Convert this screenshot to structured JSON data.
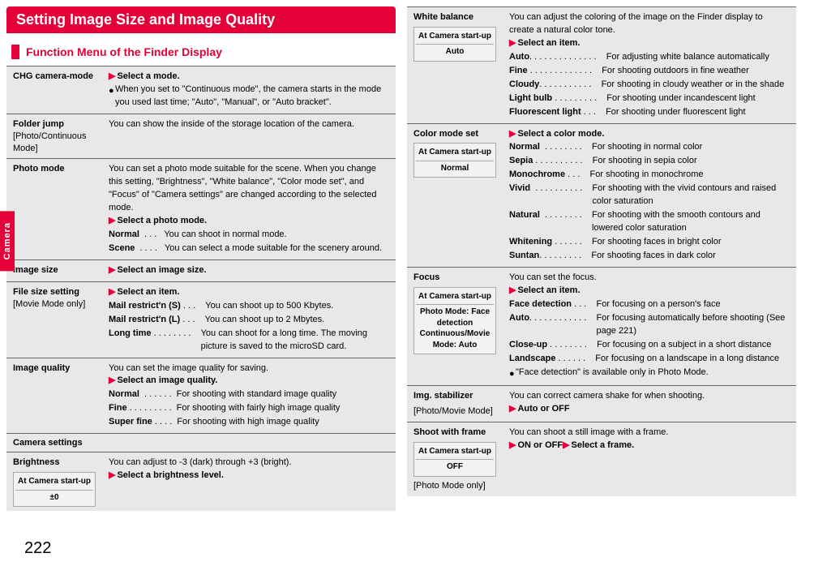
{
  "sideTab": "Camera",
  "pageNumber": "222",
  "titleBand": "Setting Image Size and Image Quality",
  "subtitle": "Function Menu of the Finder Display",
  "marker": "▶",
  "bullet": "●",
  "leftCol": [
    {
      "head": "CHG camera-mode",
      "headSub": "",
      "body": {
        "instruction": "Select a mode.",
        "note": "When you set to \"Continuous mode\", the camera starts in the mode you used last time; \"Auto\", \"Manual\", or \"Auto bracket\"."
      }
    },
    {
      "head": "Folder jump",
      "headSub": "[Photo/Continuous Mode]",
      "desc": "You can show the inside of the storage location of the camera."
    },
    {
      "head": "Photo mode",
      "desc": "You can set a photo mode suitable for the scene. When you change this setting, \"Brightness\", \"White balance\", \"Color mode set\", and \"Focus\" of \"Camera settings\" are changed according to the selected mode.",
      "instruction": "Select a photo mode.",
      "opts": [
        {
          "name": "Normal",
          "dots": "  . . . ",
          "desc": "You can shoot in normal mode."
        },
        {
          "name": "Scene",
          "dots": "  . . . . ",
          "desc": "You can select a mode suitable for the scenery around."
        }
      ]
    },
    {
      "head": "Image size",
      "instruction": "Select an image size."
    },
    {
      "head": "File size setting",
      "headSub": "[Movie Mode only]",
      "instruction": "Select an item.",
      "opts": [
        {
          "name": "Mail restrict'n (S)",
          "dots": " . . .  ",
          "desc": "You can shoot up to 500 Kbytes."
        },
        {
          "name": "Mail restrict'n (L)",
          "dots": " . . .  ",
          "desc": "You can shoot up to 2 Mbytes."
        },
        {
          "name": "Long time",
          "dots": " . . . . . . . .  ",
          "desc": "You can shoot for a long time. The moving picture is saved to the microSD card."
        }
      ]
    },
    {
      "head": "Image quality",
      "desc": "You can set the image quality for saving.",
      "instruction": "Select an image quality.",
      "opts": [
        {
          "name": "Normal",
          "dots": "  . . . . . .",
          "desc": "For shooting with standard image quality"
        },
        {
          "name": "Fine",
          "dots": " . . . . . . . . .",
          "desc": "For shooting with fairly high image quality"
        },
        {
          "name": "Super fine",
          "dots": " . . . .",
          "desc": "For shooting with high image quality"
        }
      ]
    },
    {
      "cameraSettings": "Camera settings"
    },
    {
      "head": "Brightness",
      "desc": "You can adjust to -3 (dark) through +3 (bright).",
      "instruction": "Select a brightness level.",
      "startup": {
        "label": "At Camera start-up",
        "value": "±0"
      }
    }
  ],
  "rightCol": [
    {
      "head": "White balance",
      "startup": {
        "label": "At Camera start-up",
        "value": "Auto"
      },
      "desc": "You can adjust the coloring of the image on the Finder display to create a natural color tone.",
      "instruction": "Select an item.",
      "opts": [
        {
          "name": "Auto",
          "dots": ". . . . . . . . . . . . . .  ",
          "desc": "For adjusting white balance automatically"
        },
        {
          "name": "Fine",
          "dots": " . . . . . . . . . . . . .  ",
          "desc": "For shooting outdoors in fine weather"
        },
        {
          "name": "Cloudy",
          "dots": ". . . . . . . . . . .  ",
          "desc": "For shooting in cloudy weather or in the shade"
        },
        {
          "name": "Light bulb",
          "dots": " . . . . . . . . .  ",
          "desc": "For shooting under incandescent light"
        },
        {
          "name": "Fluorescent light",
          "dots": " . . .  ",
          "desc": "For shooting under fluorescent light"
        }
      ]
    },
    {
      "head": "Color mode set",
      "startup": {
        "label": "At Camera start-up",
        "value": "Normal"
      },
      "instruction": "Select a color mode.",
      "opts": [
        {
          "name": "Normal",
          "dots": "  . . . . . . . .  ",
          "desc": "For shooting in normal color"
        },
        {
          "name": "Sepia",
          "dots": " . . . . . . . . . .  ",
          "desc": "For shooting in sepia color"
        },
        {
          "name": "Monochrome",
          "dots": " . . .  ",
          "desc": "For shooting in monochrome"
        },
        {
          "name": "Vivid",
          "dots": "  . . . . . . . . . .  ",
          "desc": "For shooting with the vivid contours and raised color saturation"
        },
        {
          "name": "Natural",
          "dots": "  . . . . . . . .  ",
          "desc": "For shooting with the smooth contours and lowered color saturation"
        },
        {
          "name": "Whitening",
          "dots": " . . . . . .  ",
          "desc": "For shooting faces in bright color"
        },
        {
          "name": "Suntan",
          "dots": ". . . . . . . . .  ",
          "desc": "For shooting faces in dark color"
        }
      ]
    },
    {
      "head": "Focus",
      "startup": {
        "label": "At Camera start-up",
        "value": "Photo Mode: Face detection Continuous/Movie Mode: Auto"
      },
      "desc": "You can set the focus.",
      "instruction": "Select an item.",
      "opts": [
        {
          "name": "Face detection",
          "dots": " . . .  ",
          "desc": "For focusing on a person's face"
        },
        {
          "name": "Auto",
          "dots": ". . . . . . . . . . . .  ",
          "desc": "For focusing automatically before shooting (See page 221)"
        },
        {
          "name": "Close-up",
          "dots": " . . . . . . . .  ",
          "desc": "For focusing on a subject in a short distance"
        },
        {
          "name": "Landscape",
          "dots": " . . . . . .  ",
          "desc": "For focusing on a landscape in a long distance"
        }
      ],
      "note": "\"Face detection\" is available only in Photo Mode."
    },
    {
      "head": "Img. stabilizer",
      "headSub": "[Photo/Movie Mode]",
      "desc": "You can correct camera shake for when shooting.",
      "instruction": "Auto or OFF"
    },
    {
      "head": "Shoot with frame",
      "headSub": "[Photo Mode only]",
      "startup": {
        "label": "At Camera start-up",
        "value": "OFF"
      },
      "desc": "You can shoot a still image with a frame.",
      "twoInstructions": [
        "ON or OFF",
        "Select a frame."
      ]
    }
  ]
}
